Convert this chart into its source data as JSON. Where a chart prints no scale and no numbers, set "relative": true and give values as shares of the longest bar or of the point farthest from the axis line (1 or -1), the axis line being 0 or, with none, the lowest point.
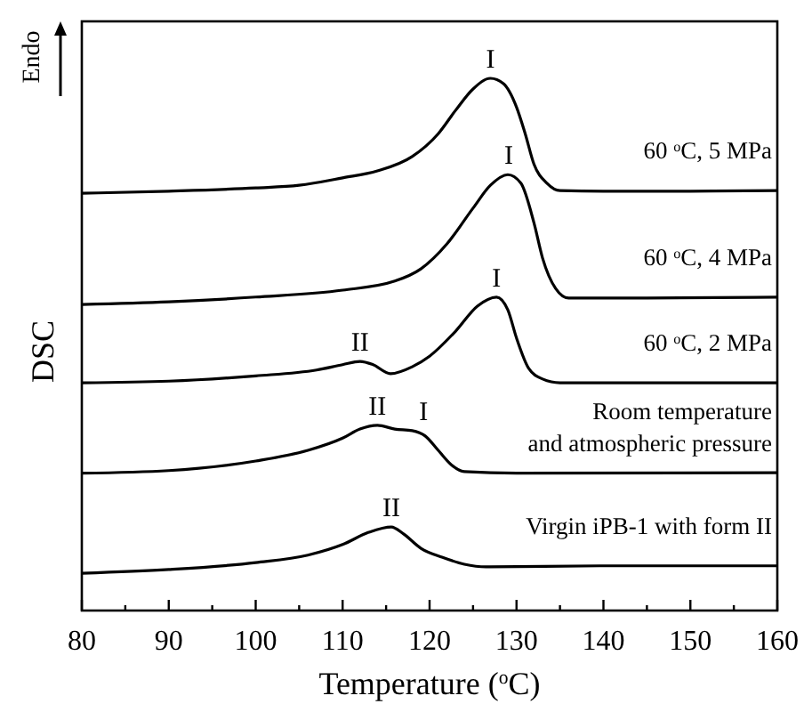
{
  "chart_data": {
    "type": "line",
    "relative": true,
    "xlabel": "Temperature ($^{o}$C)",
    "ylabel": "DSC",
    "xlim": [
      80,
      160
    ],
    "xticks": [
      80,
      {
        "value": 85,
        "label": null
      },
      90,
      {
        "value": 95,
        "label": null
      },
      100,
      {
        "value": 105,
        "label": null
      },
      110,
      {
        "value": 115,
        "label": null
      },
      120,
      {
        "value": 125,
        "label": null
      },
      130,
      {
        "value": 135,
        "label": null
      },
      140,
      {
        "value": 145,
        "label": null
      },
      150,
      {
        "value": 155,
        "label": null
      },
      160
    ],
    "tick_labels": "x",
    "series": [
      {
        "name": "60 $^{o}$C, 5 MPa",
        "color": "#000000",
        "x": [
          80,
          90,
          100,
          105,
          110,
          114,
          118,
          121,
          123,
          125,
          127,
          128.5,
          130,
          131,
          132,
          133.5,
          135,
          140,
          150,
          160
        ],
        "values": [
          0.784,
          0.788,
          0.794,
          0.799,
          0.813,
          0.826,
          0.853,
          0.896,
          0.94,
          0.98,
          1.0,
          0.99,
          0.946,
          0.896,
          0.839,
          0.803,
          0.789,
          0.788,
          0.788,
          0.789
        ]
      },
      {
        "name": "60 $^{o}$C, 4 MPa",
        "color": "#000000",
        "x": [
          80,
          90,
          100,
          110,
          116,
          119,
          122,
          125,
          127,
          129,
          130.5,
          132,
          133,
          134.5,
          136,
          145,
          160
        ],
        "values": [
          0.575,
          0.58,
          0.589,
          0.602,
          0.619,
          0.642,
          0.689,
          0.756,
          0.799,
          0.819,
          0.803,
          0.729,
          0.662,
          0.605,
          0.587,
          0.587,
          0.589
        ]
      },
      {
        "name": "60 $^{o}$C, 2 MPa",
        "color": "#000000",
        "x": [
          80,
          90,
          100,
          107,
          110,
          112,
          113.5,
          115.5,
          118,
          120,
          123,
          125.5,
          127.7,
          129,
          130,
          131.4,
          133,
          135,
          160
        ],
        "values": [
          0.428,
          0.431,
          0.441,
          0.452,
          0.462,
          0.468,
          0.462,
          0.445,
          0.458,
          0.478,
          0.525,
          0.572,
          0.589,
          0.565,
          0.512,
          0.455,
          0.435,
          0.428,
          0.428
        ]
      },
      {
        "name": "Room temperature\nand atmospheric pressure",
        "color": "#000000",
        "x": [
          80,
          90,
          100,
          106,
          110,
          112,
          114,
          116,
          118,
          119.5,
          121,
          122.5,
          124,
          130,
          160
        ],
        "values": [
          0.258,
          0.263,
          0.281,
          0.301,
          0.324,
          0.341,
          0.348,
          0.341,
          0.338,
          0.328,
          0.301,
          0.274,
          0.261,
          0.258,
          0.259
        ]
      },
      {
        "name": "Virgin iPB-1 with form II",
        "color": "#000000",
        "x": [
          80,
          90,
          100,
          106,
          110,
          113,
          115.6,
          117,
          119,
          121.5,
          124,
          126.5,
          140,
          160
        ],
        "values": [
          0.07,
          0.077,
          0.09,
          0.104,
          0.124,
          0.147,
          0.157,
          0.144,
          0.117,
          0.1,
          0.087,
          0.082,
          0.084,
          0.084
        ]
      }
    ],
    "annotations": [
      "Endo",
      {
        "text": "I",
        "x": 127,
        "y": 1.0
      },
      {
        "text": "I",
        "x": 129.1,
        "y": 0.819
      },
      {
        "text": "I",
        "x": 127.7,
        "y": 0.589
      },
      {
        "text": "II",
        "x": 112,
        "y": 0.468
      },
      {
        "text": "II",
        "x": 114,
        "y": 0.348
      },
      {
        "text": "I",
        "x": 119.3,
        "y": 0.338
      },
      {
        "text": "II",
        "x": 115.6,
        "y": 0.157
      }
    ]
  }
}
